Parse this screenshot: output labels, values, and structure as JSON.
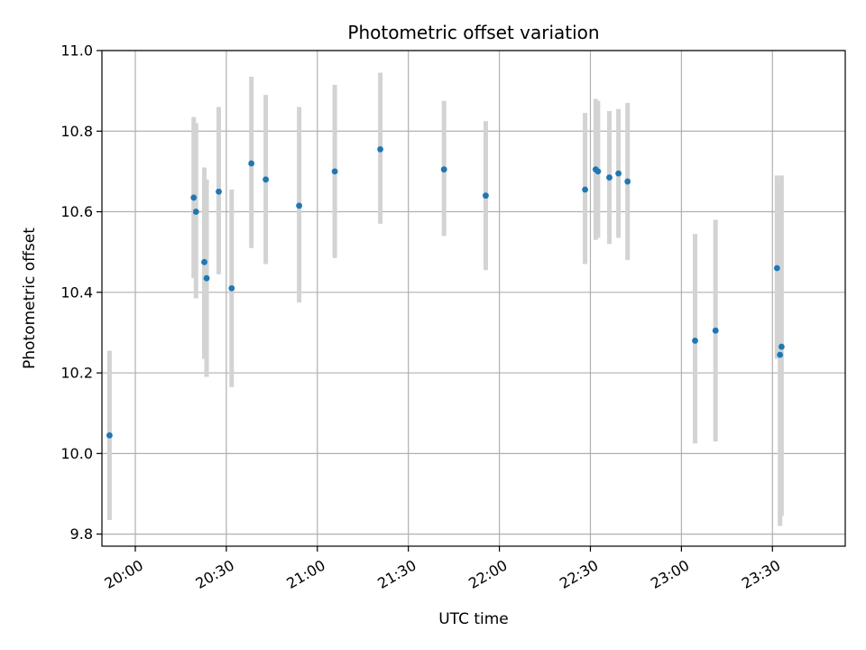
{
  "chart_data": {
    "type": "scatter",
    "title": "Photometric offset variation",
    "xlabel": "UTC time",
    "ylabel": "Photometric offset",
    "x_unit": "UTC time (HH:MM)",
    "xlim": [
      "19:49",
      "23:54"
    ],
    "ylim": [
      9.77,
      11.0
    ],
    "x_ticks": [
      "20:00",
      "20:30",
      "21:00",
      "21:30",
      "22:00",
      "22:30",
      "23:00",
      "23:30"
    ],
    "y_ticks": [
      9.8,
      10.0,
      10.2,
      10.4,
      10.6,
      10.8,
      11.0
    ],
    "y_tick_labels": [
      "9.8",
      "10.0",
      "10.2",
      "10.4",
      "10.6",
      "10.8",
      "11.0"
    ],
    "grid": true,
    "point_color": "#1f77b4",
    "errorbar_color": "#d3d3d3",
    "series": [
      {
        "points": [
          {
            "t": "19:51:30",
            "y": 10.045,
            "lo": 9.835,
            "hi": 10.255
          },
          {
            "t": "20:19:15",
            "y": 10.635,
            "lo": 10.435,
            "hi": 10.835
          },
          {
            "t": "20:20:00",
            "y": 10.6,
            "lo": 10.385,
            "hi": 10.82
          },
          {
            "t": "20:22:45",
            "y": 10.475,
            "lo": 10.235,
            "hi": 10.71
          },
          {
            "t": "20:23:30",
            "y": 10.435,
            "lo": 10.19,
            "hi": 10.68
          },
          {
            "t": "20:27:30",
            "y": 10.65,
            "lo": 10.445,
            "hi": 10.86
          },
          {
            "t": "20:31:45",
            "y": 10.41,
            "lo": 10.165,
            "hi": 10.655
          },
          {
            "t": "20:38:15",
            "y": 10.72,
            "lo": 10.51,
            "hi": 10.935
          },
          {
            "t": "20:43:00",
            "y": 10.68,
            "lo": 10.47,
            "hi": 10.89
          },
          {
            "t": "20:54:00",
            "y": 10.615,
            "lo": 10.375,
            "hi": 10.86
          },
          {
            "t": "21:05:45",
            "y": 10.7,
            "lo": 10.485,
            "hi": 10.915
          },
          {
            "t": "21:20:45",
            "y": 10.755,
            "lo": 10.57,
            "hi": 10.945
          },
          {
            "t": "21:41:45",
            "y": 10.705,
            "lo": 10.54,
            "hi": 10.875
          },
          {
            "t": "21:55:30",
            "y": 10.64,
            "lo": 10.455,
            "hi": 10.825
          },
          {
            "t": "22:28:15",
            "y": 10.655,
            "lo": 10.47,
            "hi": 10.845
          },
          {
            "t": "22:31:45",
            "y": 10.705,
            "lo": 10.53,
            "hi": 10.88
          },
          {
            "t": "22:32:30",
            "y": 10.7,
            "lo": 10.535,
            "hi": 10.875
          },
          {
            "t": "22:36:15",
            "y": 10.685,
            "lo": 10.52,
            "hi": 10.85
          },
          {
            "t": "22:39:15",
            "y": 10.695,
            "lo": 10.535,
            "hi": 10.855
          },
          {
            "t": "22:42:15",
            "y": 10.675,
            "lo": 10.48,
            "hi": 10.87
          },
          {
            "t": "23:04:30",
            "y": 10.28,
            "lo": 10.025,
            "hi": 10.545
          },
          {
            "t": "23:11:15",
            "y": 10.305,
            "lo": 10.03,
            "hi": 10.58
          },
          {
            "t": "23:31:30",
            "y": 10.46,
            "lo": 10.235,
            "hi": 10.69
          },
          {
            "t": "23:32:30",
            "y": 10.245,
            "lo": 9.82,
            "hi": 10.67
          },
          {
            "t": "23:33:00",
            "y": 10.265,
            "lo": 9.845,
            "hi": 10.69
          }
        ]
      }
    ]
  }
}
